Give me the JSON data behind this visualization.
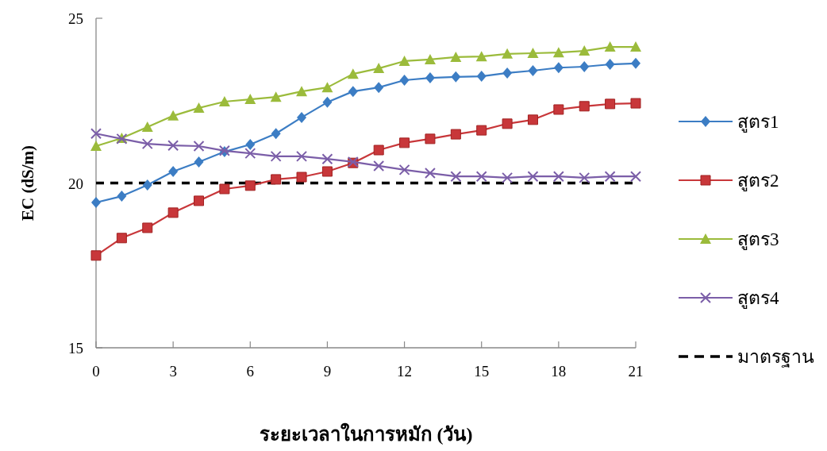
{
  "chart_data": {
    "type": "line",
    "xlabel": "ระยะเวลาในการหมัก (วัน)",
    "ylabel": "EC (dS/m)",
    "x": [
      0,
      1,
      2,
      3,
      4,
      5,
      6,
      7,
      8,
      9,
      10,
      11,
      12,
      13,
      14,
      15,
      16,
      17,
      18,
      19,
      20,
      21
    ],
    "xlim": [
      0,
      21
    ],
    "xticks": [
      0,
      3,
      6,
      9,
      12,
      15,
      18,
      21
    ],
    "ylim": [
      15,
      25
    ],
    "yticks": [
      15,
      20,
      25
    ],
    "legend": "right",
    "line_style": "solid",
    "series": [
      {
        "name": "สูตร1",
        "color": "#3c7dc4",
        "marker": "diamond",
        "values": [
          19.41,
          19.6,
          19.94,
          20.35,
          20.64,
          20.95,
          21.17,
          21.5,
          21.99,
          22.45,
          22.78,
          22.9,
          23.12,
          23.19,
          23.22,
          23.24,
          23.34,
          23.41,
          23.5,
          23.53,
          23.6,
          23.63
        ]
      },
      {
        "name": "สูตร2",
        "color": "#c8373a",
        "marker": "square",
        "values": [
          17.8,
          18.33,
          18.64,
          19.1,
          19.46,
          19.82,
          19.92,
          20.11,
          20.18,
          20.35,
          20.61,
          21.0,
          21.22,
          21.34,
          21.48,
          21.6,
          21.8,
          21.92,
          22.23,
          22.33,
          22.4,
          22.42
        ]
      },
      {
        "name": "สูตร3",
        "color": "#9bbb3b",
        "marker": "triangle",
        "values": [
          21.12,
          21.36,
          21.7,
          22.04,
          22.28,
          22.47,
          22.54,
          22.61,
          22.78,
          22.9,
          23.31,
          23.48,
          23.7,
          23.75,
          23.82,
          23.84,
          23.92,
          23.94,
          23.96,
          24.01,
          24.13,
          24.13
        ]
      },
      {
        "name": "สูตร4",
        "color": "#7b5ea8",
        "marker": "cross",
        "values": [
          21.5,
          21.34,
          21.19,
          21.14,
          21.12,
          20.98,
          20.9,
          20.81,
          20.81,
          20.73,
          20.64,
          20.52,
          20.4,
          20.3,
          20.2,
          20.2,
          20.16,
          20.2,
          20.2,
          20.16,
          20.2,
          20.2
        ]
      }
    ],
    "ref_lines": [
      {
        "axis": "y",
        "value": 20,
        "label": "มาตรฐาน",
        "color": "#000000",
        "line_style": "dashed"
      }
    ]
  }
}
